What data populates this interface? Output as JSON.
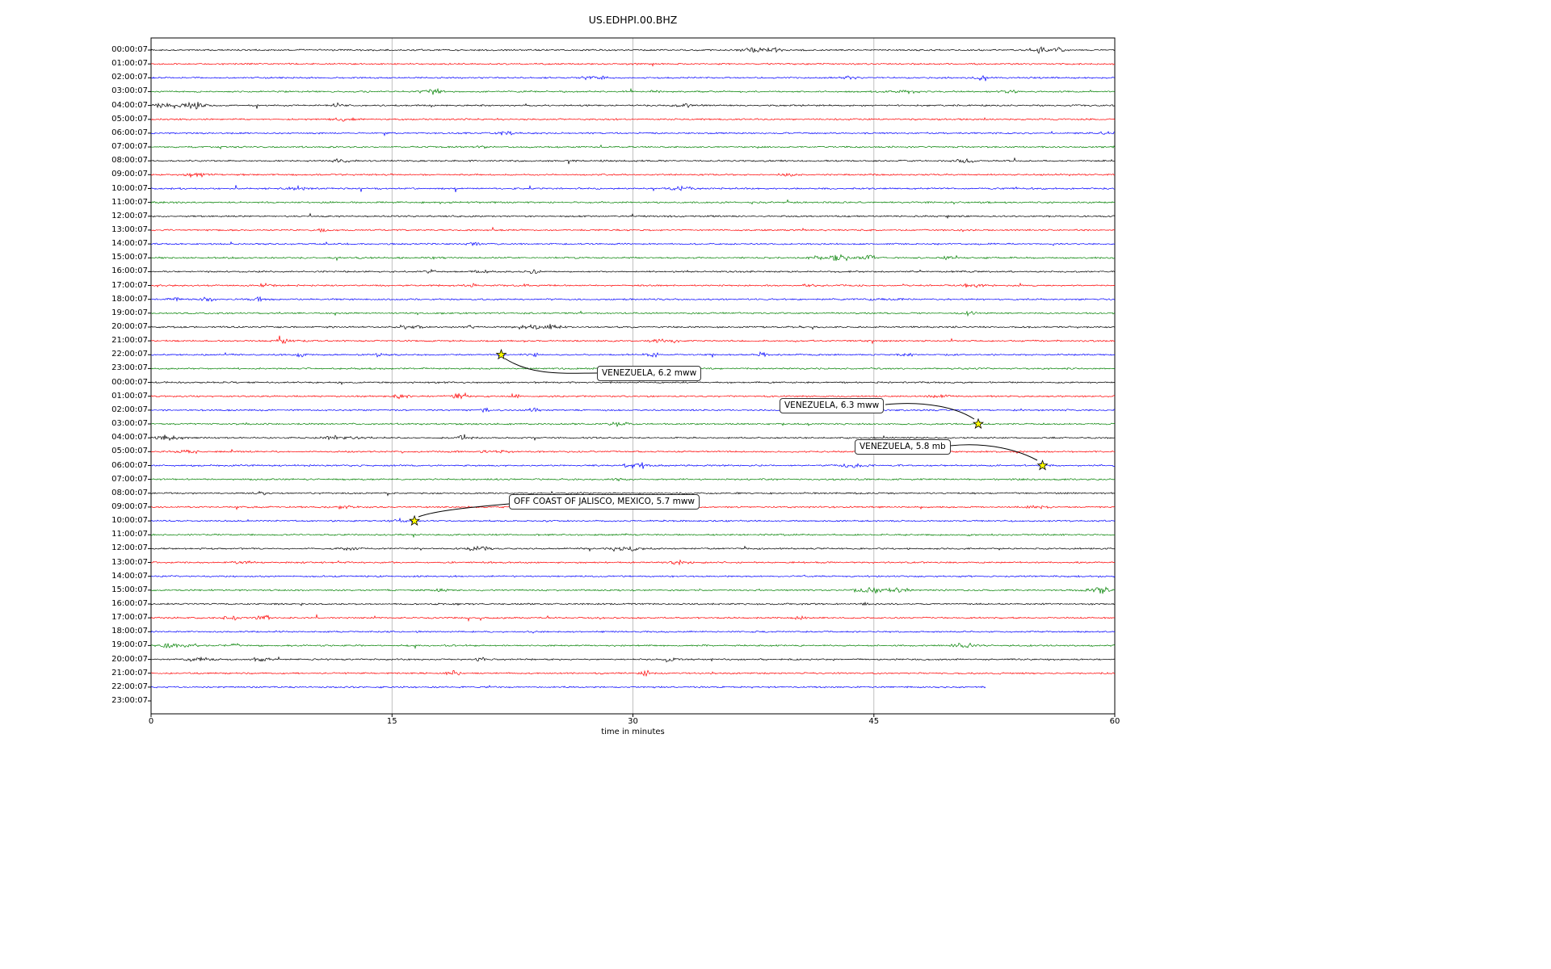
{
  "chart_data": {
    "type": "line",
    "subtype": "seismic-helicorder-dayplot",
    "title": "US.EDHPI.00.BHZ",
    "xlabel": "time in minutes",
    "xlim": [
      0,
      60
    ],
    "x_ticks": [
      0,
      15,
      30,
      45,
      60
    ],
    "grid": true,
    "grid_color": "#b0b0b0",
    "marker_color": "#ffff00",
    "trace_colors": [
      "#000000",
      "#ff0000",
      "#0000ff",
      "#008000"
    ],
    "rows": 48,
    "minutes_per_row": 60,
    "row_labels": [
      "00:00:07",
      "01:00:07",
      "02:00:07",
      "03:00:07",
      "04:00:07",
      "05:00:07",
      "06:00:07",
      "07:00:07",
      "08:00:07",
      "09:00:07",
      "10:00:07",
      "11:00:07",
      "12:00:07",
      "13:00:07",
      "14:00:07",
      "15:00:07",
      "16:00:07",
      "17:00:07",
      "18:00:07",
      "19:00:07",
      "20:00:07",
      "21:00:07",
      "22:00:07",
      "23:00:07",
      "00:00:07",
      "01:00:07",
      "02:00:07",
      "03:00:07",
      "04:00:07",
      "05:00:07",
      "06:00:07",
      "07:00:07",
      "08:00:07",
      "09:00:07",
      "10:00:07",
      "11:00:07",
      "12:00:07",
      "13:00:07",
      "14:00:07",
      "15:00:07",
      "16:00:07",
      "17:00:07",
      "18:00:07",
      "19:00:07",
      "20:00:07",
      "21:00:07",
      "22:00:07",
      "23:00:07"
    ],
    "blank_rows": [
      47
    ],
    "partial_rows": [
      {
        "row": 46,
        "end_minute": 52
      }
    ],
    "events": [
      {
        "label": "VENEZUELA, 6.2 mww",
        "row": 22,
        "row_label": "22:00:07",
        "minute": 21.8
      },
      {
        "label": "VENEZUELA, 6.3 mww",
        "row": 27,
        "row_label": "03:00:07",
        "minute": 51.5
      },
      {
        "label": "VENEZUELA, 5.8 mb",
        "row": 30,
        "row_label": "06:00:07",
        "minute": 55.5
      },
      {
        "label": "OFF COAST OF JALISCO, MEXICO, 5.7 mww",
        "row": 34,
        "row_label": "10:00:07",
        "minute": 16.4
      }
    ]
  }
}
